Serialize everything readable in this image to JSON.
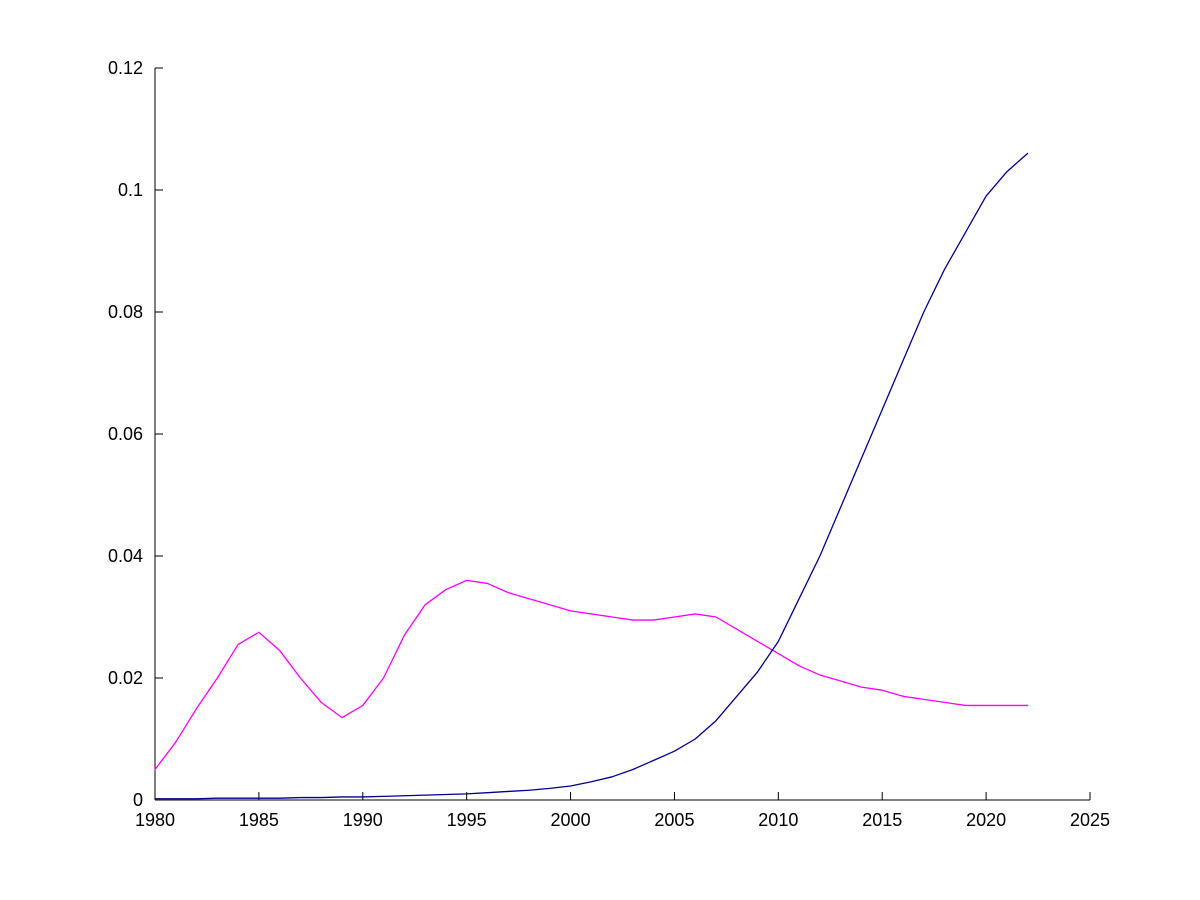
{
  "chart_data": {
    "type": "line",
    "title": "",
    "xlabel": "",
    "ylabel": "",
    "grid": false,
    "legend_position": "none",
    "axis_color": "#000000",
    "background_color": "#ffffff",
    "xlim": [
      1980,
      2025
    ],
    "ylim": [
      0,
      0.12
    ],
    "xticks": [
      1980,
      1985,
      1990,
      1995,
      2000,
      2005,
      2010,
      2015,
      2020,
      2025
    ],
    "xtick_labels": [
      "1980",
      "1985",
      "1990",
      "1995",
      "2000",
      "2005",
      "2010",
      "2015",
      "2020",
      "2025"
    ],
    "yticks": [
      0,
      0.02,
      0.04,
      0.06,
      0.08,
      0.1,
      0.12
    ],
    "ytick_labels": [
      "0",
      "0.02",
      "0.04",
      "0.06",
      "0.08",
      "0.1",
      "0.12"
    ],
    "x": [
      1980,
      1981,
      1982,
      1983,
      1984,
      1985,
      1986,
      1987,
      1988,
      1989,
      1990,
      1991,
      1992,
      1993,
      1994,
      1995,
      1996,
      1997,
      1998,
      1999,
      2000,
      2001,
      2002,
      2003,
      2004,
      2005,
      2006,
      2007,
      2008,
      2009,
      2010,
      2011,
      2012,
      2013,
      2014,
      2015,
      2016,
      2017,
      2018,
      2019,
      2020,
      2021,
      2022
    ],
    "series": [
      {
        "name": "magenta-series",
        "color": "#FF00FF",
        "values": [
          0.005,
          0.0095,
          0.015,
          0.02,
          0.0255,
          0.0275,
          0.0245,
          0.02,
          0.016,
          0.0135,
          0.0155,
          0.02,
          0.027,
          0.032,
          0.0345,
          0.036,
          0.0355,
          0.034,
          0.033,
          0.032,
          0.031,
          0.0305,
          0.03,
          0.0295,
          0.0295,
          0.03,
          0.0305,
          0.03,
          0.028,
          0.026,
          0.024,
          0.022,
          0.0205,
          0.0195,
          0.0185,
          0.018,
          0.017,
          0.0165,
          0.016,
          0.0155,
          0.0155,
          0.0155,
          0.0155
        ]
      },
      {
        "name": "blue-series",
        "color": "#00008B",
        "values": [
          0.0002,
          0.0002,
          0.0002,
          0.0003,
          0.0003,
          0.0003,
          0.0003,
          0.0004,
          0.0004,
          0.0005,
          0.0005,
          0.0006,
          0.0007,
          0.0008,
          0.0009,
          0.001,
          0.0012,
          0.0014,
          0.0016,
          0.0019,
          0.0023,
          0.003,
          0.0038,
          0.005,
          0.0065,
          0.008,
          0.01,
          0.013,
          0.017,
          0.021,
          0.026,
          0.033,
          0.04,
          0.048,
          0.056,
          0.064,
          0.072,
          0.08,
          0.087,
          0.093,
          0.099,
          0.103,
          0.106
        ]
      }
    ]
  }
}
